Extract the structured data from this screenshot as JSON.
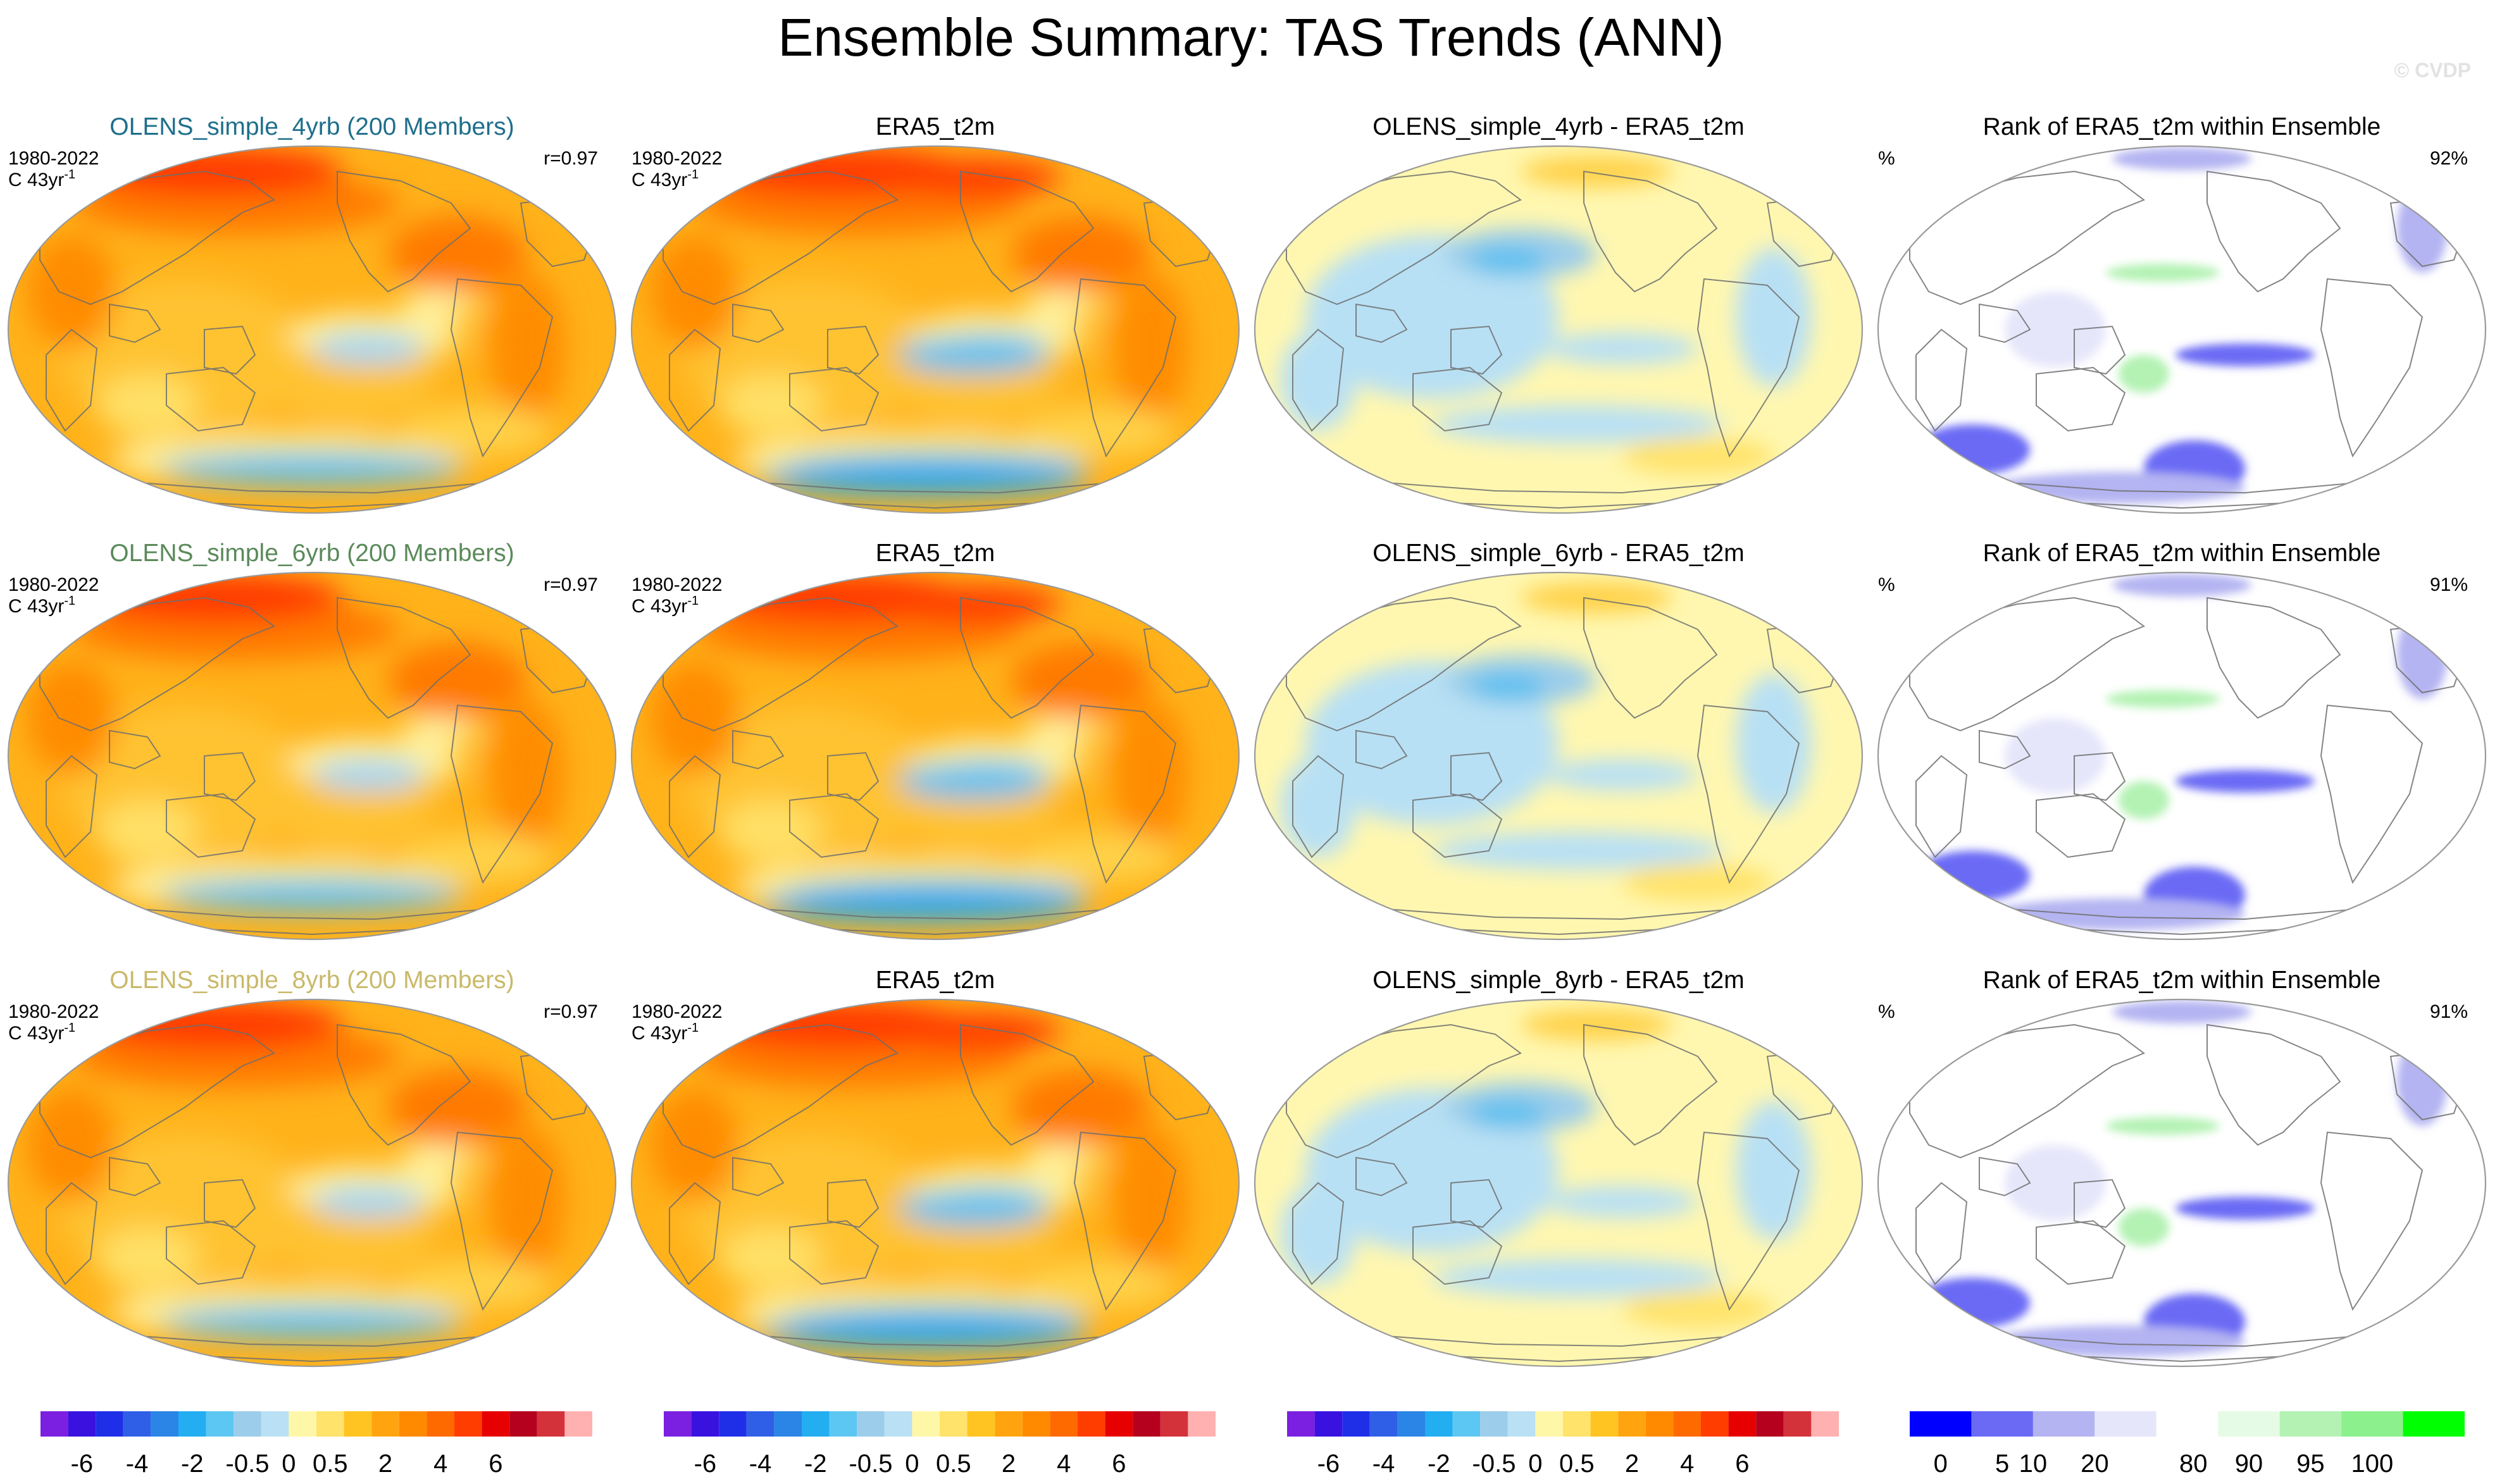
{
  "header": {
    "title": "Ensemble Summary: TAS Trends (ANN)",
    "watermark": "© CVDP"
  },
  "chart_data": [
    {
      "type": "heatmap",
      "row": 1,
      "panel": "ensemble",
      "title": "OLENS_simple_4yrb (200 Members)",
      "title_color": "#1f6f8b",
      "period": "1980-2022",
      "units": "C 43yr",
      "units_exponent": "-1",
      "corner_right": "r=0.97",
      "field": "ensemble mean TAS trend; warming over NH land/Arctic, cooling in eastern tropical Pacific and Southern Ocean"
    },
    {
      "type": "heatmap",
      "row": 1,
      "panel": "observation",
      "title": "ERA5_t2m",
      "title_color": "#000000",
      "period": "1980-2022",
      "units": "C 43yr",
      "units_exponent": "-1",
      "corner_right": "",
      "field": "observed TAS trend"
    },
    {
      "type": "heatmap",
      "row": 1,
      "panel": "difference",
      "title": "OLENS_simple_4yrb - ERA5_t2m",
      "title_color": "#000000",
      "period": "",
      "units": "",
      "units_exponent": "",
      "corner_right": "",
      "field": "model minus observation trend difference"
    },
    {
      "type": "heatmap",
      "row": 1,
      "panel": "rank",
      "title": "Rank of ERA5_t2m within Ensemble",
      "title_color": "#000000",
      "period": "%",
      "units": "",
      "units_exponent": "",
      "corner_right": "92%",
      "field": "percentile rank of observations within ensemble"
    },
    {
      "type": "heatmap",
      "row": 2,
      "panel": "ensemble",
      "title": "OLENS_simple_6yrb (200 Members)",
      "title_color": "#5b8a5b",
      "period": "1980-2022",
      "units": "C 43yr",
      "units_exponent": "-1",
      "corner_right": "r=0.97",
      "field": "ensemble mean TAS trend"
    },
    {
      "type": "heatmap",
      "row": 2,
      "panel": "observation",
      "title": "ERA5_t2m",
      "title_color": "#000000",
      "period": "1980-2022",
      "units": "C 43yr",
      "units_exponent": "-1",
      "corner_right": "",
      "field": "observed TAS trend"
    },
    {
      "type": "heatmap",
      "row": 2,
      "panel": "difference",
      "title": "OLENS_simple_6yrb - ERA5_t2m",
      "title_color": "#000000",
      "period": "",
      "units": "",
      "units_exponent": "",
      "corner_right": "",
      "field": "model minus observation trend difference"
    },
    {
      "type": "heatmap",
      "row": 2,
      "panel": "rank",
      "title": "Rank of ERA5_t2m within Ensemble",
      "title_color": "#000000",
      "period": "%",
      "units": "",
      "units_exponent": "",
      "corner_right": "91%",
      "field": "percentile rank of observations within ensemble"
    },
    {
      "type": "heatmap",
      "row": 3,
      "panel": "ensemble",
      "title": "OLENS_simple_8yrb (200 Members)",
      "title_color": "#c9b96a",
      "period": "1980-2022",
      "units": "C 43yr",
      "units_exponent": "-1",
      "corner_right": "r=0.97",
      "field": "ensemble mean TAS trend"
    },
    {
      "type": "heatmap",
      "row": 3,
      "panel": "observation",
      "title": "ERA5_t2m",
      "title_color": "#000000",
      "period": "1980-2022",
      "units": "C 43yr",
      "units_exponent": "-1",
      "corner_right": "",
      "field": "observed TAS trend"
    },
    {
      "type": "heatmap",
      "row": 3,
      "panel": "difference",
      "title": "OLENS_simple_8yrb - ERA5_t2m",
      "title_color": "#000000",
      "period": "",
      "units": "",
      "units_exponent": "",
      "corner_right": "",
      "field": "model minus observation trend difference"
    },
    {
      "type": "heatmap",
      "row": 3,
      "panel": "rank",
      "title": "Rank of ERA5_t2m within Ensemble",
      "title_color": "#000000",
      "period": "%",
      "units": "",
      "units_exponent": "",
      "corner_right": "91%",
      "field": "percentile rank of observations within ensemble"
    }
  ],
  "colorbars": {
    "trend": {
      "colors": [
        "#7b1fe0",
        "#3a12e0",
        "#1f2fe8",
        "#2f5fe6",
        "#2a85e6",
        "#22aef0",
        "#5cc7f2",
        "#9ccdea",
        "#b9e0f4",
        "#fff7a8",
        "#ffe36b",
        "#ffc422",
        "#ffa40e",
        "#ff8a00",
        "#ff6a00",
        "#ff3d00",
        "#e60000",
        "#b5001e",
        "#d4323a",
        "#ffb0b0"
      ],
      "tick_labels": [
        "-6",
        "-4",
        "-2",
        "-0.5",
        "0",
        "0.5",
        "2",
        "4",
        "6"
      ],
      "tick_positions": [
        1.5,
        3.5,
        5.5,
        7.5,
        9,
        10.5,
        12.5,
        14.5,
        16.5
      ]
    },
    "rank": {
      "colors": [
        "#0000ff",
        "#6a6af5",
        "#b4b4f2",
        "#e6e6fb",
        "#ffffff",
        "#e6fbe6",
        "#b4f2b4",
        "#8cf08c",
        "#00ff00"
      ],
      "tick_labels": [
        "0",
        "5",
        "10",
        "20",
        "80",
        "90",
        "95",
        "100"
      ],
      "tick_positions": [
        0.5,
        1.5,
        2,
        3,
        4.6,
        5.5,
        6.5,
        7.5
      ]
    }
  }
}
